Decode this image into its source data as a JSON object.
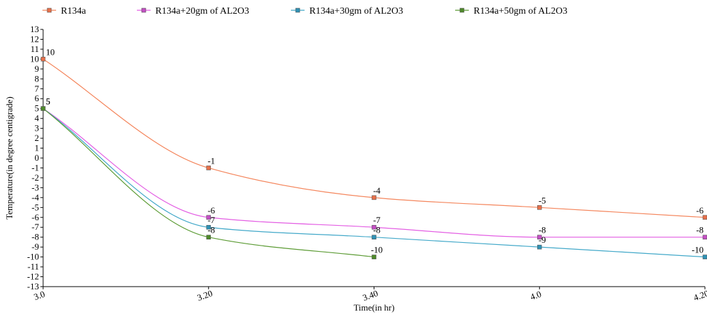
{
  "chart_data": {
    "type": "line",
    "title": "",
    "xlabel": "Time(in hr)",
    "ylabel": "Temperature(in degree centigrade)",
    "categories": [
      "3.0",
      "3.20",
      "3.40",
      "4.0",
      "4.20"
    ],
    "ylim": [
      -13,
      13
    ],
    "yticks": [
      13,
      12,
      11,
      10,
      9,
      8,
      7,
      6,
      5,
      4,
      3,
      2,
      1,
      0,
      -1,
      -2,
      -3,
      -4,
      -5,
      -6,
      -7,
      -8,
      -9,
      -10,
      -11,
      -12,
      -13
    ],
    "grid": false,
    "legend_position": "top",
    "series": [
      {
        "name": "R134a",
        "color": "#f4845a",
        "marker_color": "#e8704a",
        "values": [
          10,
          -1,
          -4,
          -5,
          -6
        ]
      },
      {
        "name": "R134a+20gm of AL2O3",
        "color": "#e35ce3",
        "marker_color": "#c44fc4",
        "values": [
          5,
          -6,
          -7,
          -8,
          -8
        ]
      },
      {
        "name": "R134a+30gm of AL2O3",
        "color": "#3fa7c8",
        "marker_color": "#2f92b5",
        "values": [
          5,
          -7,
          -8,
          -9,
          -10
        ]
      },
      {
        "name": "R134a+50gm of AL2O3",
        "color": "#5a9a32",
        "marker_color": "#4e8a2a",
        "values": [
          5,
          -8,
          -10,
          null,
          null
        ]
      }
    ]
  }
}
